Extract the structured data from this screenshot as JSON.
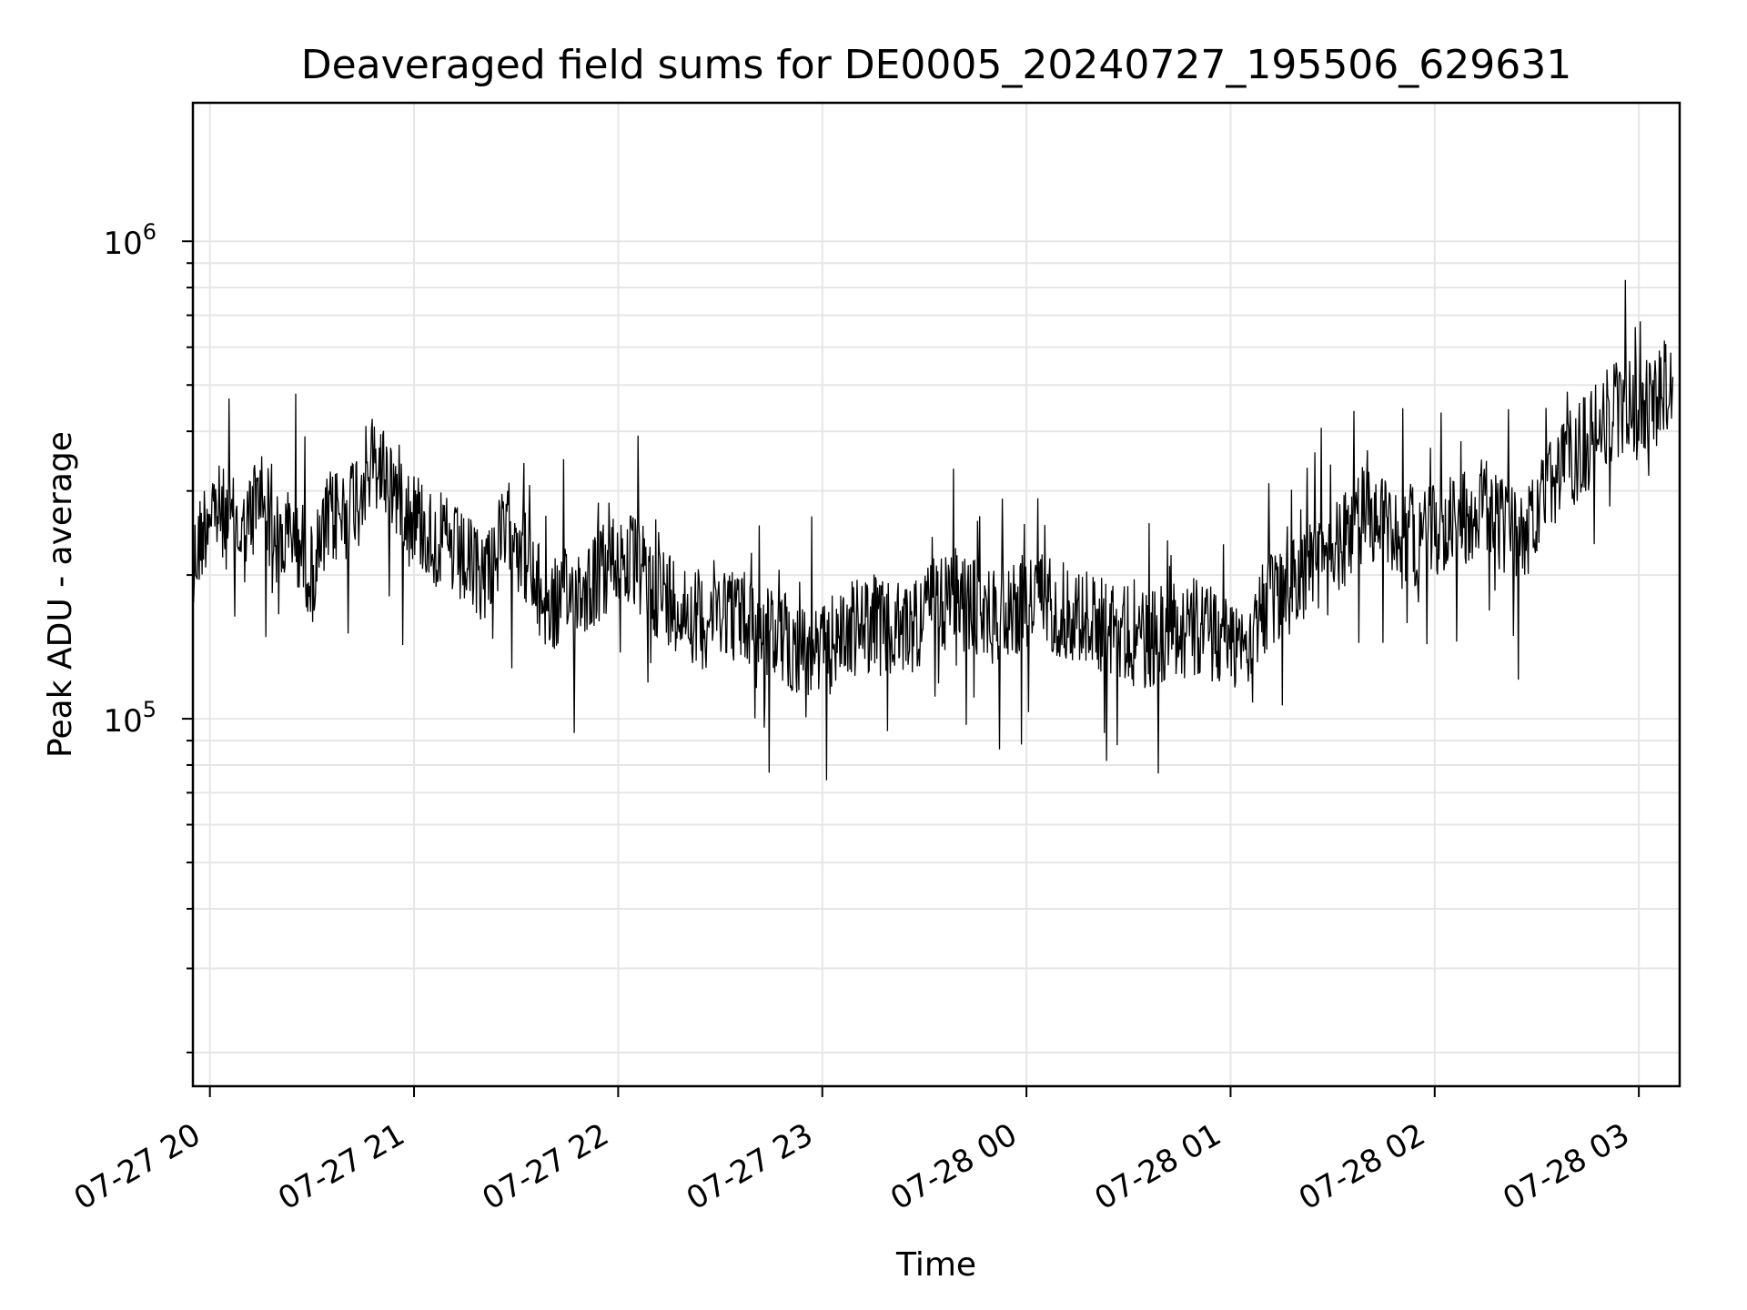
{
  "chart_data": {
    "type": "line",
    "title": "Deaveraged field sums for DE0005_20240727_195506_629631",
    "xlabel": "Time",
    "ylabel": "Peak ADU - average",
    "yscale": "log",
    "ylim": [
      17000,
      1950000
    ],
    "xlim": [
      "2024-07-27 19:55",
      "2024-07-28 03:12"
    ],
    "x_ticks": [
      {
        "value": "2024-07-27 20:00",
        "label": "07-27 20"
      },
      {
        "value": "2024-07-27 21:00",
        "label": "07-27 21"
      },
      {
        "value": "2024-07-27 22:00",
        "label": "07-27 22"
      },
      {
        "value": "2024-07-27 23:00",
        "label": "07-27 23"
      },
      {
        "value": "2024-07-28 00:00",
        "label": "07-28 00"
      },
      {
        "value": "2024-07-28 01:00",
        "label": "07-28 01"
      },
      {
        "value": "2024-07-28 02:00",
        "label": "07-28 02"
      },
      {
        "value": "2024-07-28 03:00",
        "label": "07-28 03"
      }
    ],
    "y_major_ticks": [
      {
        "value": 100000,
        "base": "10",
        "exp": "5"
      },
      {
        "value": 1000000,
        "base": "10",
        "exp": "6"
      }
    ],
    "grid": true,
    "line_color": "#000000",
    "grid_color": "#e6e6e6",
    "series": [
      {
        "x": [
          "2024-07-27 19:55",
          "2024-07-27 20:00",
          "2024-07-27 20:05",
          "2024-07-27 20:10",
          "2024-07-27 20:15",
          "2024-07-27 20:20",
          "2024-07-27 20:25",
          "2024-07-27 20:30",
          "2024-07-27 20:35",
          "2024-07-27 20:40",
          "2024-07-27 20:45",
          "2024-07-27 20:50",
          "2024-07-27 20:55",
          "2024-07-27 21:00",
          "2024-07-27 21:05",
          "2024-07-27 21:10",
          "2024-07-27 21:15",
          "2024-07-27 21:20",
          "2024-07-27 21:25",
          "2024-07-27 21:30",
          "2024-07-27 21:35",
          "2024-07-27 21:40",
          "2024-07-27 21:45",
          "2024-07-27 21:50",
          "2024-07-27 21:55",
          "2024-07-27 22:00",
          "2024-07-27 22:05",
          "2024-07-27 22:10",
          "2024-07-27 22:15",
          "2024-07-27 22:20",
          "2024-07-27 22:25",
          "2024-07-27 22:30",
          "2024-07-27 22:35",
          "2024-07-27 22:40",
          "2024-07-27 22:45",
          "2024-07-27 22:50",
          "2024-07-27 22:55",
          "2024-07-27 23:00",
          "2024-07-27 23:05",
          "2024-07-27 23:10",
          "2024-07-27 23:15",
          "2024-07-27 23:20",
          "2024-07-27 23:25",
          "2024-07-27 23:30",
          "2024-07-27 23:35",
          "2024-07-27 23:40",
          "2024-07-27 23:45",
          "2024-07-27 23:50",
          "2024-07-27 23:55",
          "2024-07-28 00:00",
          "2024-07-28 00:05",
          "2024-07-28 00:10",
          "2024-07-28 00:15",
          "2024-07-28 00:20",
          "2024-07-28 00:25",
          "2024-07-28 00:30",
          "2024-07-28 00:35",
          "2024-07-28 00:40",
          "2024-07-28 00:45",
          "2024-07-28 00:50",
          "2024-07-28 00:55",
          "2024-07-28 01:00",
          "2024-07-28 01:05",
          "2024-07-28 01:10",
          "2024-07-28 01:15",
          "2024-07-28 01:20",
          "2024-07-28 01:25",
          "2024-07-28 01:30",
          "2024-07-28 01:35",
          "2024-07-28 01:40",
          "2024-07-28 01:45",
          "2024-07-28 01:50",
          "2024-07-28 01:55",
          "2024-07-28 02:00",
          "2024-07-28 02:05",
          "2024-07-28 02:10",
          "2024-07-28 02:15",
          "2024-07-28 02:20",
          "2024-07-28 02:25",
          "2024-07-28 02:30",
          "2024-07-28 02:35",
          "2024-07-28 02:40",
          "2024-07-28 02:45",
          "2024-07-28 02:50",
          "2024-07-28 02:55",
          "2024-07-28 03:00",
          "2024-07-28 03:05",
          "2024-07-28 03:10"
        ],
        "y": [
          210000,
          280000,
          260000,
          240000,
          300000,
          230000,
          250000,
          200000,
          260000,
          270000,
          320000,
          340000,
          300000,
          270000,
          240000,
          230000,
          210000,
          200000,
          230000,
          260000,
          190000,
          170000,
          180000,
          190000,
          200000,
          220000,
          210000,
          190000,
          180000,
          170000,
          160000,
          175000,
          165000,
          160000,
          150000,
          145000,
          140000,
          135000,
          150000,
          155000,
          160000,
          150000,
          155000,
          165000,
          175000,
          180000,
          170000,
          165000,
          170000,
          175000,
          180000,
          170000,
          165000,
          160000,
          155000,
          150000,
          145000,
          150000,
          160000,
          155000,
          150000,
          145000,
          150000,
          170000,
          180000,
          200000,
          210000,
          220000,
          250000,
          270000,
          260000,
          250000,
          240000,
          250000,
          260000,
          270000,
          280000,
          250000,
          240000,
          260000,
          320000,
          350000,
          380000,
          420000,
          450000,
          440000,
          460000,
          520000
        ]
      }
    ]
  }
}
